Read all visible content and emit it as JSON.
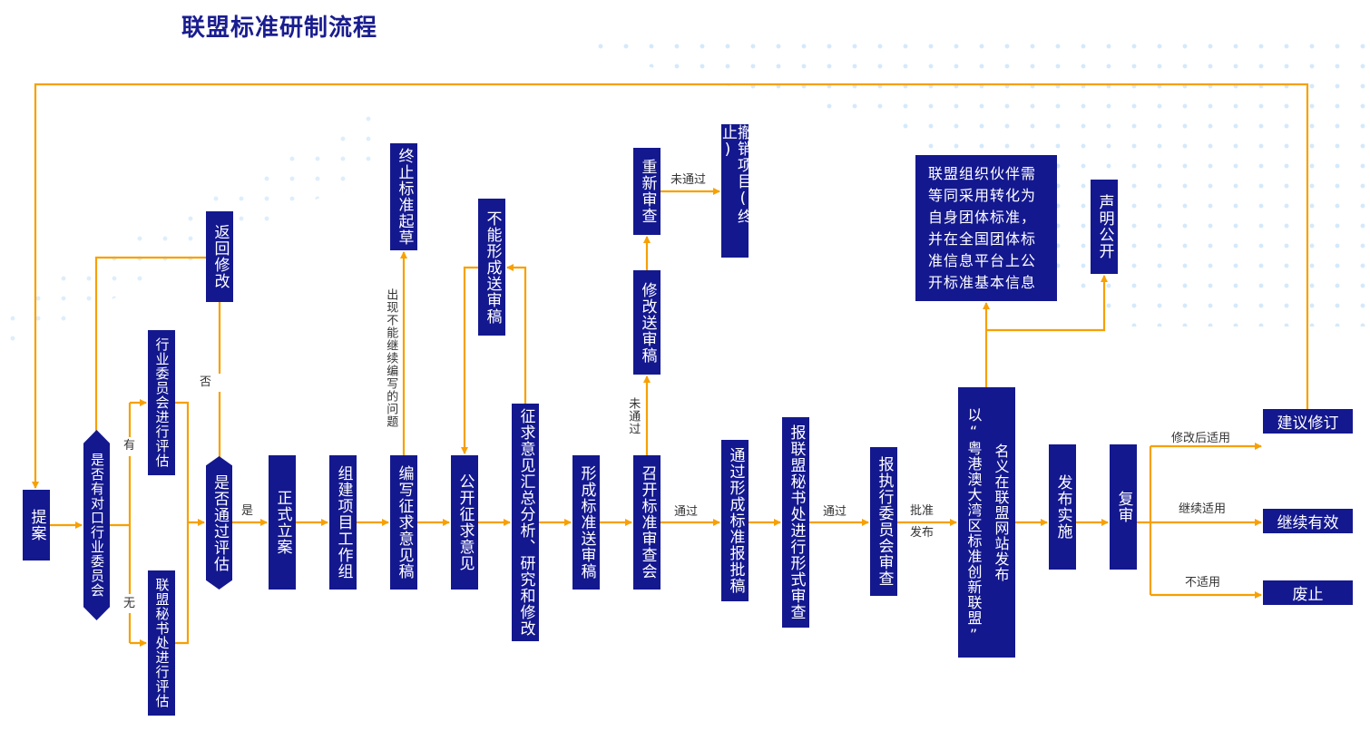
{
  "title": "联盟标准研制流程",
  "colors": {
    "box": "#14188f",
    "arrow": "#f7a000",
    "title": "#1a1d8f",
    "dots": "#cfe6fb"
  },
  "nodes": {
    "proposal": "提案",
    "has_committee": "是否有对口行业委员会",
    "committee_eval": "行业委员会进行评估",
    "secretariat_eval": "联盟秘书处进行评估",
    "pass_eval": "是否通过评估",
    "return_modify": "返回修改",
    "formal_approval": "正式立案",
    "build_group": "组建项目工作组",
    "draft_consult": "编写征求意见稿",
    "terminate_draft": "终止标准起草",
    "public_consult": "公开征求意见",
    "cannot_form": "不能形成送审稿",
    "summarize": "征求意见汇总分析、研究和修改",
    "form_review_draft": "形成标准送审稿",
    "review_meeting": "召开标准审查会",
    "modify_review_draft": "修改送审稿",
    "re_review": "重新审查",
    "cancel_project": "撤销项目(终止)",
    "approval_draft": "通过形成标准报批稿",
    "secretariat_check": "报联盟秘书处进行形式审查",
    "exec_review": "报执行委员会审查",
    "publish_left": "以“粤港澳大湾区标准创新联盟”",
    "publish_right": "名义在联盟网站发布",
    "partners": [
      "联盟组织伙伴需",
      "等同采用转化为",
      "自身团体标准，",
      "并在全国团体标",
      "准信息平台上公",
      "开标准基本信息"
    ],
    "declare_public": "声明公开",
    "implement": "发布实施",
    "re_examine": "复审",
    "suggest_revise": "建议修订",
    "remain_valid": "继续有效",
    "abolish": "废止"
  },
  "labels": {
    "yes_committee": "有",
    "no_committee": "无",
    "fail": "否",
    "pass_yes": "是",
    "cannot_continue": "出现不能继续编写的问题",
    "not_passed_1": "未通过",
    "not_passed_2": "未通过",
    "passed_1": "通过",
    "passed_2": "通过",
    "approve": "批准",
    "publish": "发布",
    "apply_after_modify": "修改后适用",
    "continue_apply": "继续适用",
    "not_apply": "不适用"
  }
}
